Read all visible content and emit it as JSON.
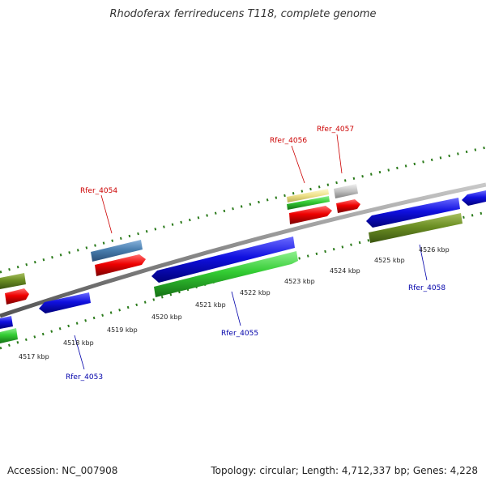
{
  "title": "Rhodoferax ferrireducens T118, complete genome",
  "footer": {
    "accession": "Accession: NC_007908",
    "summary": "Topology: circular; Length: 4,712,337 bp; Genes: 4,228"
  },
  "colors": {
    "backbone": "#8a8a8a",
    "tick": "#2a7a1a",
    "label_forward": "#cc0000",
    "label_reverse": "#0000aa",
    "blue": "#1010e0",
    "green": "#33cc33",
    "red": "#ee0000",
    "olive": "#6b8e23",
    "steel": "#4a7fb0",
    "khaki": "#eee08a",
    "gray": "#c0c0c0"
  },
  "kbp_labels": [
    {
      "id": "4517",
      "text": "4517 kbp"
    },
    {
      "id": "4518",
      "text": "4518 kbp"
    },
    {
      "id": "4519",
      "text": "4519 kbp"
    },
    {
      "id": "4520",
      "text": "4520 kbp"
    },
    {
      "id": "4521",
      "text": "4521 kbp"
    },
    {
      "id": "4522",
      "text": "4522 kbp"
    },
    {
      "id": "4523",
      "text": "4523 kbp"
    },
    {
      "id": "4524",
      "text": "4524 kbp"
    },
    {
      "id": "4525",
      "text": "4525 kbp"
    },
    {
      "id": "4526",
      "text": "4526 kbp"
    }
  ],
  "gene_labels": [
    {
      "id": "rfer-4053",
      "text": "Rfer_4053",
      "strand": "reverse"
    },
    {
      "id": "rfer-4054",
      "text": "Rfer_4054",
      "strand": "forward"
    },
    {
      "id": "rfer-4055",
      "text": "Rfer_4055",
      "strand": "reverse"
    },
    {
      "id": "rfer-4056",
      "text": "Rfer_4056",
      "strand": "forward"
    },
    {
      "id": "rfer-4057",
      "text": "Rfer_4057",
      "strand": "forward"
    },
    {
      "id": "rfer-4058",
      "text": "Rfer_4058",
      "strand": "reverse"
    }
  ]
}
